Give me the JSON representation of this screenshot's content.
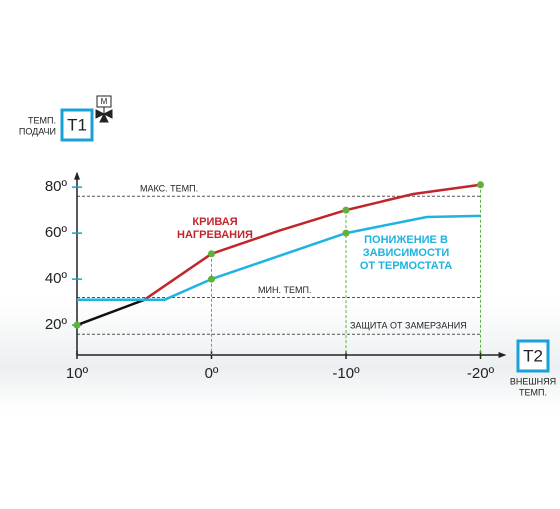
{
  "chart_data": {
    "type": "line",
    "y_label": [
      "ТЕМП.",
      "ПОДАЧИ"
    ],
    "y_badge": "T1",
    "valve_label": "М",
    "x_badge": "T2",
    "x_label": [
      "ВНЕШНЯЯ",
      "ТЕМП."
    ],
    "xlim": [
      10,
      -20
    ],
    "ylim": [
      7,
      85
    ],
    "xticks": [
      {
        "value": 10,
        "label": "10º"
      },
      {
        "value": 0,
        "label": "0º"
      },
      {
        "value": -10,
        "label": "-10º"
      },
      {
        "value": -20,
        "label": "-20º"
      }
    ],
    "yticks": [
      {
        "value": 20,
        "label": "20º"
      },
      {
        "value": 40,
        "label": "40º"
      },
      {
        "value": 60,
        "label": "60º"
      },
      {
        "value": 80,
        "label": "80º"
      }
    ],
    "reference_lines": [
      {
        "label": "МАКС. ТЕМП.",
        "value": 76
      },
      {
        "label": "МИН. ТЕМП.",
        "value": 32
      },
      {
        "label": "ЗАЩИТА ОТ ЗАМЕРЗАНИЯ",
        "value": 16
      }
    ],
    "dot_color": "#5cb33c",
    "drop_line_color": "#5cb33c",
    "series": [
      {
        "label_lines": [
          "КРИВАЯ",
          "НАГРЕВАНИЯ"
        ],
        "color": "#c0272d",
        "start_color": "#111111",
        "x": [
          10,
          5,
          0,
          -5,
          -10,
          -15,
          -20
        ],
        "values": [
          20,
          31,
          51,
          61,
          70,
          77,
          81
        ],
        "dots": [
          true,
          false,
          true,
          false,
          true,
          false,
          true
        ]
      },
      {
        "label_lines": [
          "ПОНИЖЕНИЕ В",
          "ЗАВИСИМОСТИ",
          "ОТ ТЕРМОСТАТА"
        ],
        "color": "#1fb3e0",
        "x": [
          10,
          3.5,
          0,
          -5,
          -10,
          -16,
          -20
        ],
        "values": [
          31,
          31,
          40,
          50,
          60,
          67,
          67.5
        ],
        "dots": [
          false,
          false,
          true,
          false,
          true,
          false,
          false
        ]
      }
    ]
  }
}
